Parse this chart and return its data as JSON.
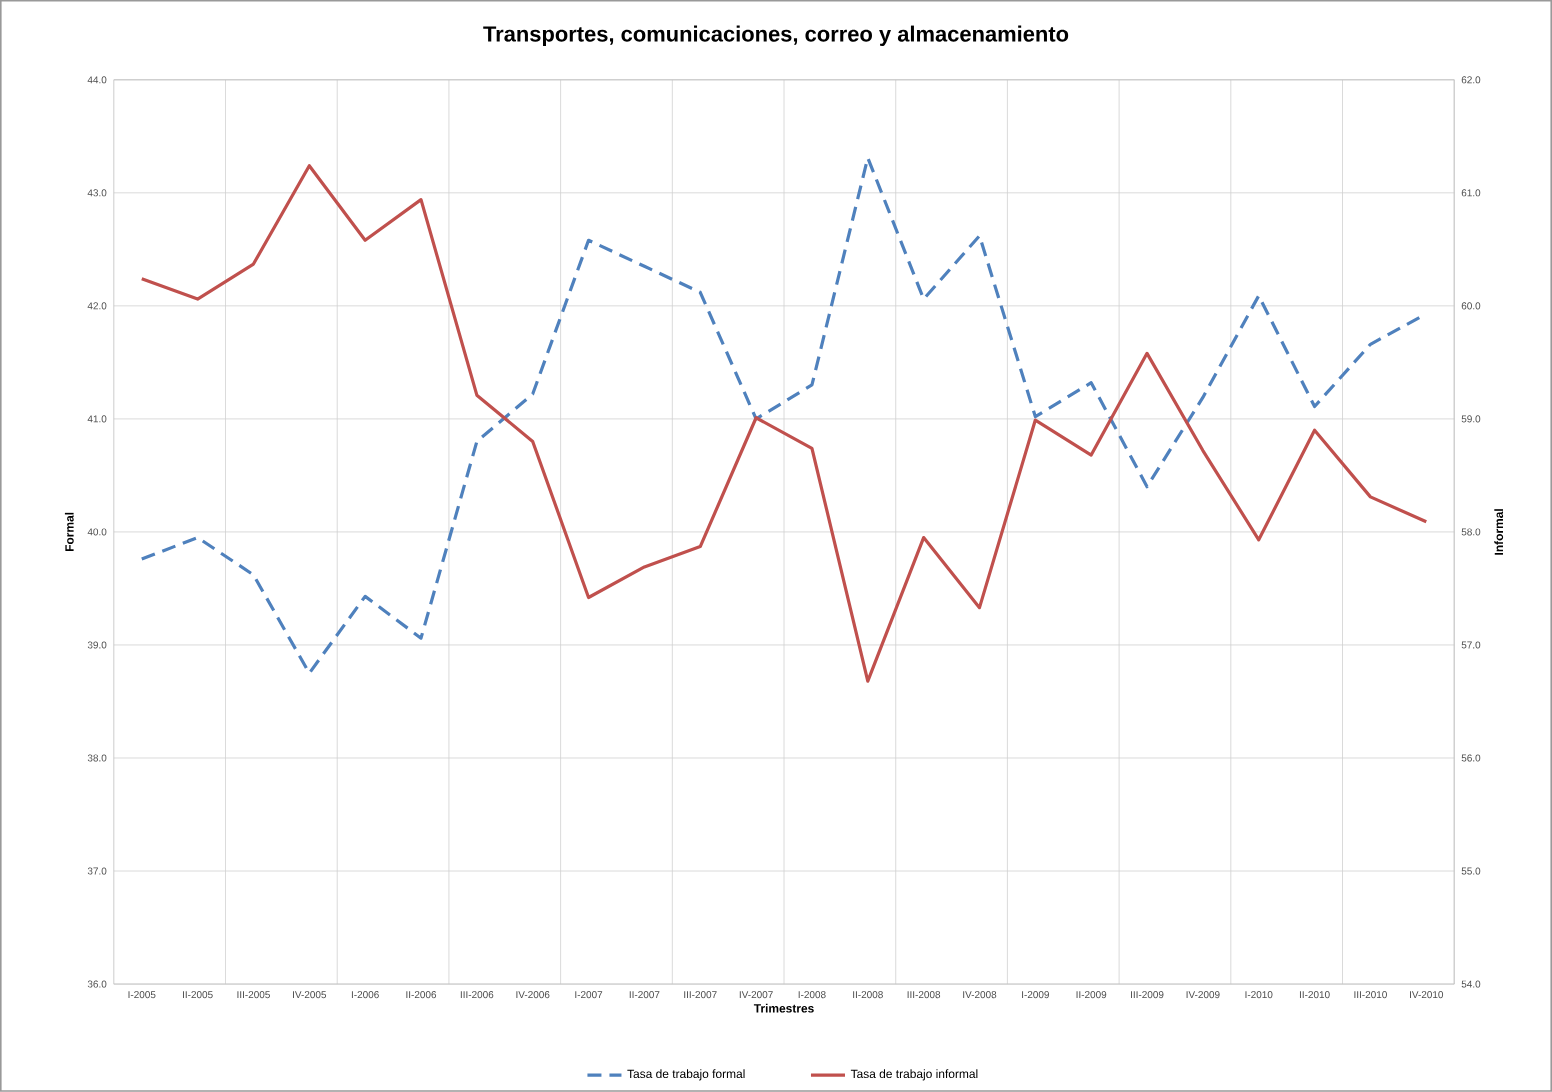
{
  "chart_data": {
    "type": "line",
    "title": "Transportes, comunicaciones, correo y almacenamiento",
    "xlabel": "Trimestres",
    "ylabel": "Formal",
    "y2label": "Informal",
    "categories": [
      "I-2005",
      "II-2005",
      "III-2005",
      "IV-2005",
      "I-2006",
      "II-2006",
      "III-2006",
      "IV-2006",
      "I-2007",
      "II-2007",
      "III-2007",
      "IV-2007",
      "I-2008",
      "II-2008",
      "III-2008",
      "IV-2008",
      "I-2009",
      "II-2009",
      "III-2009",
      "IV-2009",
      "I-2010",
      "II-2010",
      "III-2010",
      "IV-2010"
    ],
    "series": [
      {
        "name": "Tasa de trabajo formal",
        "color": "#4f81bd",
        "line_style": "dashed",
        "values": [
          39.76,
          39.95,
          39.62,
          38.75,
          39.43,
          39.06,
          40.8,
          41.22,
          42.58,
          42.35,
          42.12,
          41.0,
          41.3,
          43.31,
          42.06,
          42.62,
          41.02,
          41.32,
          40.4,
          41.19,
          42.09,
          41.11,
          41.66,
          41.93
        ]
      },
      {
        "name": "Tasa de trabajo informal",
        "color": "#c0504d",
        "line_style": "solid",
        "axis": "y2",
        "values": [
          60.24,
          60.06,
          60.37,
          61.24,
          60.58,
          60.94,
          59.21,
          58.8,
          57.42,
          57.69,
          57.87,
          59.01,
          58.74,
          56.68,
          57.95,
          57.33,
          58.99,
          58.68,
          59.58,
          58.72,
          57.93,
          58.9,
          58.31,
          58.09
        ]
      }
    ],
    "ylim": [
      36,
      44
    ],
    "yticks": [
      {
        "value": 36,
        "label": "36.0"
      },
      {
        "value": 37,
        "label": "37.0"
      },
      {
        "value": 38,
        "label": "38.0"
      },
      {
        "value": 39,
        "label": "39.0"
      },
      {
        "value": 40,
        "label": "40.0"
      },
      {
        "value": 41,
        "label": "41.0"
      },
      {
        "value": 42,
        "label": "42.0"
      },
      {
        "value": 43,
        "label": "43.0"
      },
      {
        "value": 44,
        "label": "44.0"
      }
    ],
    "y2lim": [
      54,
      62
    ],
    "y2ticks": [
      {
        "value": 54,
        "label": "54.0"
      },
      {
        "value": 55,
        "label": "55.0"
      },
      {
        "value": 56,
        "label": "56.0"
      },
      {
        "value": 57,
        "label": "57.0"
      },
      {
        "value": 58,
        "label": "58.0"
      },
      {
        "value": 59,
        "label": "59.0"
      },
      {
        "value": 60,
        "label": "60.0"
      },
      {
        "value": 61,
        "label": "61.0"
      },
      {
        "value": 62,
        "label": "62.0"
      }
    ],
    "grid": true,
    "legend": "bottom",
    "marker": "none"
  }
}
